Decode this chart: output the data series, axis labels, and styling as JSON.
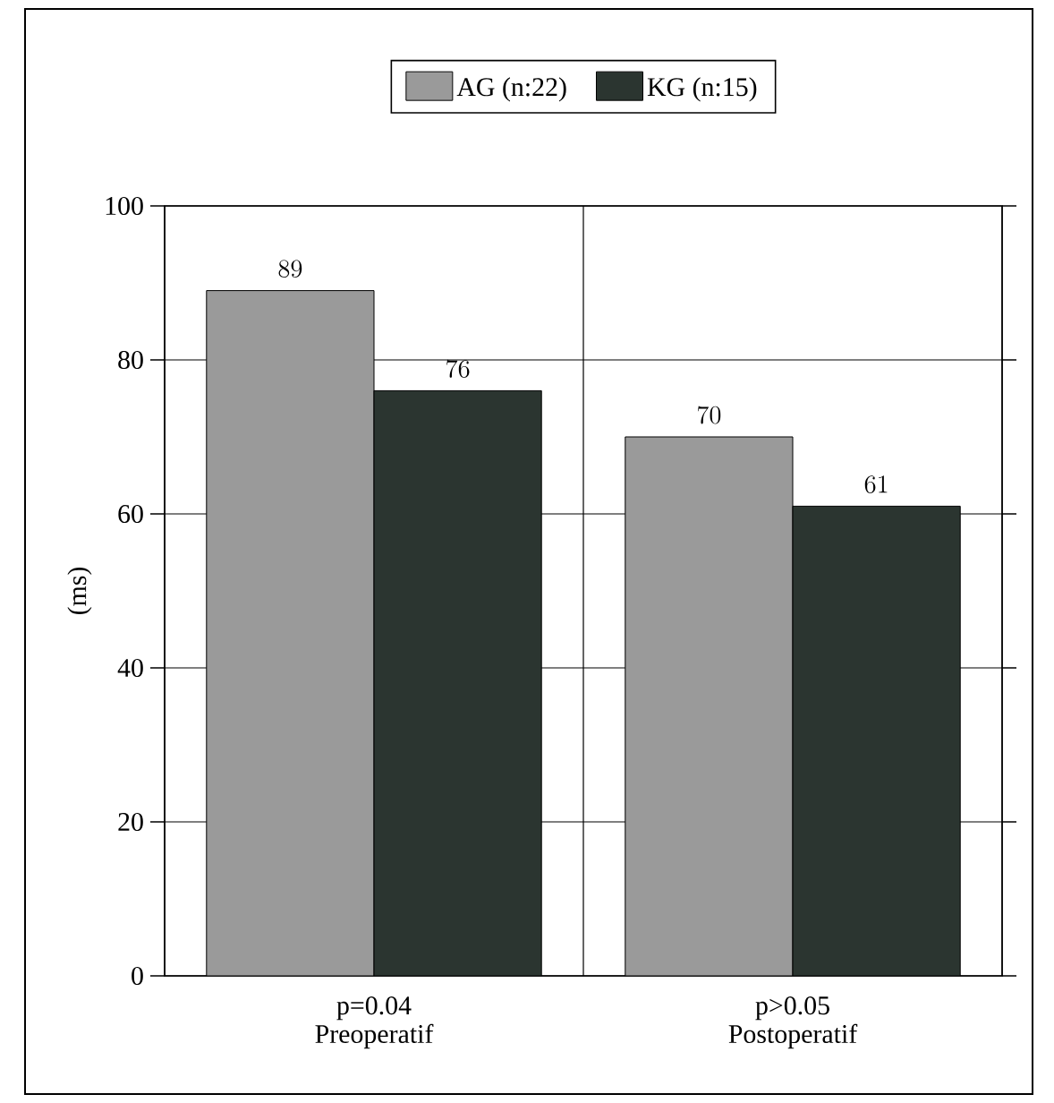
{
  "chart_data": {
    "type": "bar",
    "categories": [
      "Preoperatif",
      "Postoperatif"
    ],
    "annotations": [
      "p=0.04",
      "p>0.05"
    ],
    "ylabel": "(ms)",
    "series": [
      {
        "name": "AG (n:22)",
        "color": "#9a9a9a",
        "values": [
          89,
          70
        ]
      },
      {
        "name": "KG (n:15)",
        "color": "#2b3530",
        "values": [
          76,
          61
        ]
      }
    ],
    "ylim": [
      0,
      100
    ],
    "yticks": [
      0,
      20,
      40,
      60,
      80,
      100
    ],
    "grid": true,
    "legend": "top",
    "data_labels": true
  }
}
